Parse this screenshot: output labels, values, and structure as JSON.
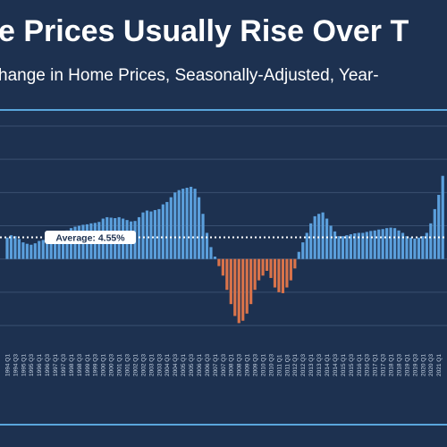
{
  "chart_data": {
    "type": "bar",
    "title": "e Prices Usually Rise Over T",
    "subtitle": "hange in Home Prices, Seasonally-Adjusted, Year-",
    "categories": [
      "1994 Q1",
      null,
      "1994 Q3",
      null,
      "1995 Q1",
      null,
      "1995 Q3",
      null,
      "1996 Q1",
      null,
      "1996 Q3",
      null,
      "1997 Q1",
      null,
      "1997 Q3",
      null,
      "1998 Q1",
      null,
      "1998 Q3",
      null,
      "1999 Q1",
      null,
      "1999 Q3",
      null,
      "2000 Q1",
      null,
      "2000 Q3",
      null,
      "2001 Q1",
      null,
      "2001 Q3",
      null,
      "2002 Q1",
      null,
      "2002 Q3",
      null,
      "2003 Q1",
      null,
      "2003 Q3",
      null,
      "2004 Q1",
      null,
      "2004 Q3",
      null,
      "2005 Q1",
      null,
      "2005 Q3",
      null,
      "2006 Q1",
      null,
      "2006 Q3",
      null,
      "2007 Q1",
      null,
      "2007 Q3",
      null,
      "2008 Q1",
      null,
      "2008 Q3",
      null,
      "2009 Q1",
      null,
      "2009 Q3",
      null,
      "2010 Q1",
      null,
      "2010 Q3",
      null,
      "2011 Q1",
      null,
      "2011 Q3",
      null,
      "2012 Q1",
      null,
      "2012 Q3",
      null,
      "2013 Q1",
      null,
      "2013 Q3",
      null,
      "2014 Q1",
      null,
      "2014 Q3",
      null,
      "2015 Q1",
      null,
      "2015 Q3",
      null,
      "2016 Q1",
      null,
      "2016 Q3",
      null,
      "2017 Q1",
      null,
      "2017 Q3",
      null,
      "2018 Q1",
      null,
      "2018 Q3",
      null,
      "2019 Q1",
      null,
      "2019 Q3",
      null,
      "2020 Q1",
      null,
      "2020 Q3",
      null,
      "2021 Q1",
      null
    ],
    "values": [
      4.5,
      5,
      4.8,
      4.2,
      3.5,
      3.2,
      3.0,
      3.3,
      3.8,
      4.0,
      4.2,
      4.5,
      4.8,
      5.0,
      5.5,
      6.0,
      6.5,
      6.8,
      7.0,
      7.2,
      7.3,
      7.5,
      7.6,
      7.8,
      8.5,
      8.8,
      8.7,
      8.6,
      8.8,
      8.5,
      8.2,
      7.9,
      8.0,
      8.8,
      9.8,
      10.2,
      10.0,
      10.3,
      10.5,
      11.5,
      12.0,
      13.0,
      14.0,
      14.5,
      14.8,
      15.0,
      15.2,
      14.8,
      13.0,
      9.5,
      5.5,
      2.5,
      0.5,
      -1.5,
      -3.5,
      -6.5,
      -9.5,
      -12,
      -13.5,
      -13.0,
      -11.5,
      -9.5,
      -6.5,
      -4.5,
      -3.5,
      -2.5,
      -4.0,
      -6.0,
      -7.0,
      -7.2,
      -6.0,
      -4.5,
      -2.0,
      1.5,
      3.5,
      5.5,
      7.5,
      9.0,
      9.5,
      9.8,
      8.5,
      7.0,
      5.8,
      4.8,
      4.8,
      5.0,
      5.2,
      5.4,
      5.5,
      5.5,
      5.7,
      5.9,
      6.0,
      6.2,
      6.3,
      6.5,
      6.6,
      6.5,
      6.0,
      5.5,
      4.8,
      4.5,
      4.3,
      4.5,
      4.8,
      5.5,
      7.5,
      10.5,
      13.5,
      17.5
    ],
    "color": "#5b9fdc",
    "negative_color": "#d9734a",
    "average": {
      "value": 4.55,
      "label": "Average: 4.55%"
    },
    "ylim": [
      -17,
      31
    ],
    "yticks": [
      -14,
      -7,
      0,
      7,
      14,
      21,
      28
    ],
    "grid": true
  }
}
